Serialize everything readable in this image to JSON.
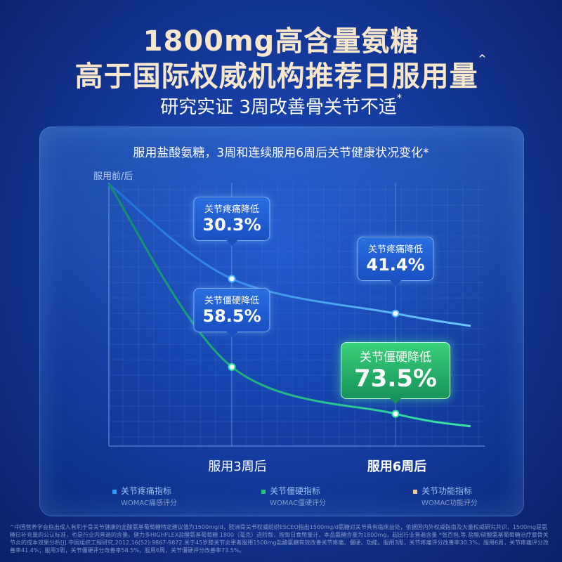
{
  "headline": {
    "line1": "1800mg高含量氨糖",
    "line2": "高于国际权威机构推荐日服用量",
    "line2_mark": "^",
    "line3": "研究实证 3周改善骨关节不适",
    "line3_mark": "*"
  },
  "panel_title": "服用盐酸氨糖，3周和连续服用6周后关节健康状况变化*",
  "chart_data": {
    "type": "line",
    "ylabel": "服用前/后",
    "categories": [
      "服用3周后",
      "服用6周后"
    ],
    "series": [
      {
        "name": "关节疼痛指标",
        "color": "#4fb4ff",
        "values": [
          30.3,
          41.4
        ]
      },
      {
        "name": "关节僵硬指标",
        "color": "#2ee39a",
        "values": [
          58.5,
          73.5
        ]
      }
    ],
    "callouts": [
      {
        "label": "关节疼痛降低",
        "value": "30.3%"
      },
      {
        "label": "关节疼痛降低",
        "value": "41.4%"
      },
      {
        "label": "关节僵硬降低",
        "value": "58.5%"
      },
      {
        "label": "关节僵硬降低",
        "value": "73.5%"
      }
    ]
  },
  "legend": [
    {
      "title": "关节疼痛指标",
      "sub": "WOMAC痛感评分",
      "color": "#2a9bff"
    },
    {
      "title": "关节僵硬指标",
      "sub": "WOMAC僵硬评分",
      "color": "#22c46e"
    },
    {
      "title": "关节功能指标",
      "sub": "WOMAC功能评分",
      "color": "#f0c98a"
    }
  ],
  "footnote": "^中国营养学会指出成人有利于骨关节健康的盐酸氨基葡萄糖特定建议值为1500mg/d，欧洲骨关节权威组织ESCEO指出1500mg/d氨糖对关节具有临床益处，依据国内外权威指南及大量权威研究共识，1500mg是氨糖日补充量的公认标准，也是行业内普遍的含量。健力多HIGHFLEX盐酸氨基葡萄糖 1800（毫克）进阶版，按每日食用量计，本品氨糖含量为1800mg，超出行业普遍含量 *张百挡,等.盐酸/硫酸氨基葡萄糖治疗膝骨关节炎的成本效果分析[J].中国组织工程研究,2012,16(52):9867-9872.关于45岁膝关节炎患者服用1500mg盐酸氨糖有效改善关节疼痛、僵硬、功能。服用3周，关节疼痛评分改善率30.3%，服用6周，关节疼痛评分改善率41.4%；服用3周，关节僵硬评分改善率58.5%，服用6周，关节僵硬评分改善率73.5%。"
}
